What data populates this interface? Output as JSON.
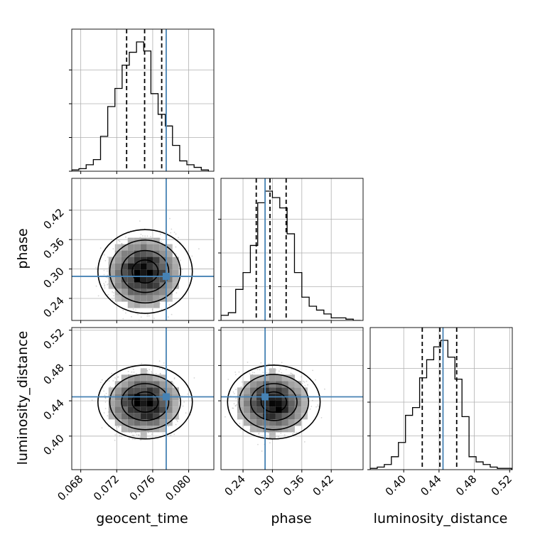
{
  "chart_data": {
    "type": "corner",
    "parameters": [
      {
        "name": "geocent_time",
        "label": "geocent_time",
        "range": [
          0.067,
          0.0828
        ],
        "ticks": [
          0.068,
          0.072,
          0.076,
          0.08
        ],
        "tick_labels": [
          "0.068",
          "0.072",
          "0.076",
          "0.080"
        ],
        "truth": 0.0775,
        "quantiles": [
          0.0731,
          0.0751,
          0.077
        ]
      },
      {
        "name": "phase",
        "label": "phase",
        "range": [
          0.195,
          0.485
        ],
        "ticks": [
          0.24,
          0.3,
          0.36,
          0.42
        ],
        "tick_labels": [
          "0.24",
          "0.30",
          "0.36",
          "0.42"
        ],
        "truth": 0.285,
        "quantiles": [
          0.267,
          0.295,
          0.328
        ]
      },
      {
        "name": "luminosity_distance",
        "label": "luminosity_distance",
        "range": [
          0.362,
          0.523
        ],
        "ticks": [
          0.4,
          0.44,
          0.48,
          0.52
        ],
        "tick_labels": [
          "0.40",
          "0.44",
          "0.48",
          "0.52"
        ],
        "truth": 0.4445,
        "quantiles": [
          0.421,
          0.441,
          0.46
        ]
      }
    ],
    "histograms_1d": [
      {
        "parameter": "geocent_time",
        "bin_edges": [
          0.067,
          0.0678,
          0.0686,
          0.0694,
          0.0702,
          0.071,
          0.0718,
          0.0726,
          0.0734,
          0.0742,
          0.075,
          0.0758,
          0.0766,
          0.0774,
          0.0782,
          0.079,
          0.0798,
          0.0806,
          0.0814,
          0.0822
        ],
        "counts": [
          0.01,
          0.02,
          0.05,
          0.09,
          0.27,
          0.5,
          0.64,
          0.82,
          0.92,
          1.0,
          0.93,
          0.6,
          0.44,
          0.35,
          0.2,
          0.08,
          0.05,
          0.03,
          0.01
        ]
      },
      {
        "parameter": "phase",
        "bin_edges": [
          0.195,
          0.21,
          0.225,
          0.24,
          0.255,
          0.27,
          0.285,
          0.3,
          0.315,
          0.33,
          0.345,
          0.36,
          0.375,
          0.39,
          0.405,
          0.42,
          0.435,
          0.45,
          0.465,
          0.48
        ],
        "counts": [
          0.04,
          0.06,
          0.24,
          0.37,
          0.58,
          0.91,
          1.0,
          0.95,
          0.87,
          0.67,
          0.37,
          0.18,
          0.11,
          0.08,
          0.05,
          0.02,
          0.02,
          0.01,
          0.0
        ]
      },
      {
        "parameter": "luminosity_distance",
        "bin_edges": [
          0.362,
          0.37,
          0.378,
          0.386,
          0.394,
          0.402,
          0.41,
          0.418,
          0.426,
          0.434,
          0.442,
          0.45,
          0.458,
          0.466,
          0.474,
          0.482,
          0.49,
          0.498,
          0.506,
          0.514,
          0.522
        ],
        "counts": [
          0.01,
          0.02,
          0.04,
          0.1,
          0.21,
          0.42,
          0.48,
          0.71,
          0.85,
          0.95,
          1.0,
          0.87,
          0.7,
          0.41,
          0.1,
          0.06,
          0.04,
          0.02,
          0.01,
          0.01
        ]
      }
    ],
    "histograms_2d": [
      {
        "x": "geocent_time",
        "y": "phase",
        "peak": [
          0.075,
          0.292
        ],
        "spread": [
          0.0025,
          0.045
        ]
      },
      {
        "x": "geocent_time",
        "y": "luminosity_distance",
        "peak": [
          0.075,
          0.437
        ],
        "spread": [
          0.0025,
          0.022
        ]
      },
      {
        "x": "phase",
        "y": "luminosity_distance",
        "peak": [
          0.3,
          0.437
        ],
        "spread": [
          0.045,
          0.022
        ]
      }
    ],
    "contour_levels": [
      "0.5-sigma",
      "1-sigma",
      "1.5-sigma",
      "2-sigma"
    ],
    "grid": true,
    "colors": {
      "truth": "#4682b4",
      "hist": "#000000",
      "quantile": "#000000",
      "scatter": "#888888",
      "grid": "#b0b0b0"
    }
  }
}
